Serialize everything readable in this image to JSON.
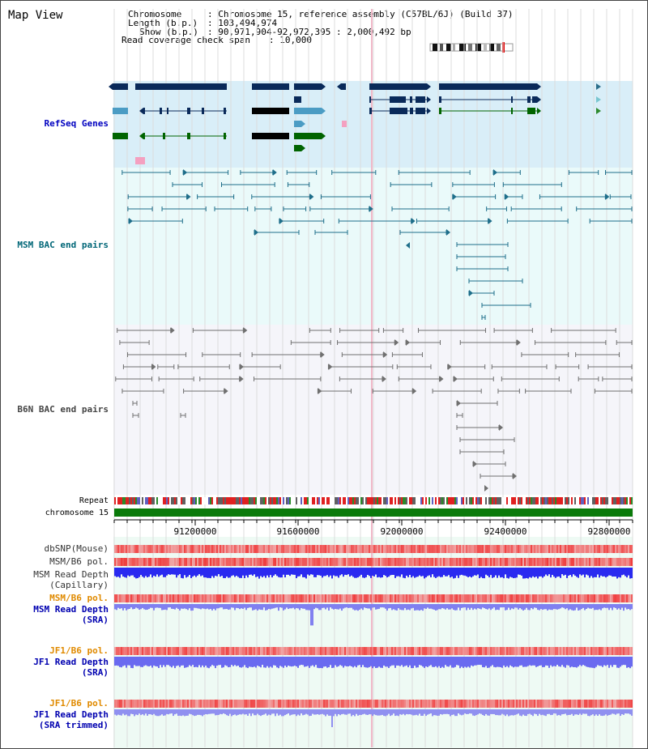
{
  "header": {
    "title": "Map View",
    "chromosome_key": "Chromosome",
    "chromosome_val": ": Chromosome 15, reference assembly (C57BL/6J) (Build 37)",
    "length_key": "Length (b.p.)",
    "length_val": ": 103,494,974",
    "show_key": "Show (b.p.)",
    "show_val": ": 90,971,904-92,972,395 : 2,000,492 bp",
    "coverage_key": "Read coverage check span",
    "coverage_val": ": 10,000"
  },
  "tracks": {
    "refseq": "RefSeq Genes",
    "msm_bac": "MSM BAC end pairs",
    "b6n_bac": "B6N BAC end pairs",
    "repeat": "Repeat",
    "chromosome": "chromosome 15",
    "dbsnp": "dbSNP(Mouse)",
    "msm_b6_pol": "MSM/B6 pol.",
    "msm_depth_cap_1": "MSM Read Depth",
    "msm_depth_cap_2": "(Capillary)",
    "msm_b6_pol_2": "MSM/B6 pol.",
    "msm_depth_sra_1": "MSM Read Depth",
    "msm_depth_sra_2": "(SRA)",
    "jf1_pol_1": "JF1/B6 pol.",
    "jf1_depth_sra_1": "JF1 Read Depth",
    "jf1_depth_sra_2": "(SRA)",
    "jf1_pol_2": "JF1/B6 pol.",
    "jf1_trim_1": "JF1 Read Depth",
    "jf1_trim_2": "(SRA trimmed)"
  },
  "axis": {
    "ticks": [
      "91200000",
      "91600000",
      "92000000",
      "92400000",
      "92800000"
    ]
  },
  "colors": {
    "gene_dark": "#0a2a5a",
    "gene_light": "#4b9cc4",
    "gene_green": "#006400",
    "msm": "#1e6e8a",
    "b6n": "#707070",
    "chrom": "#0a7a0a",
    "depth": "#2a2af0"
  }
}
